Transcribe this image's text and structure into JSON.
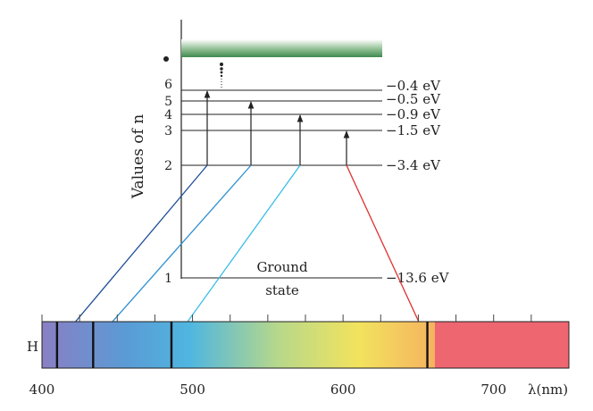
{
  "levels": [
    {
      "n": "1",
      "energy": -13.6,
      "label": "−13.6 eV"
    },
    {
      "n": "2",
      "energy": -3.4,
      "label": "−3.4 eV"
    },
    {
      "n": "3",
      "energy": -1.5,
      "label": "−1.5 eV"
    },
    {
      "n": "4",
      "energy": -0.9,
      "label": "−0.9 eV"
    },
    {
      "n": "5",
      "energy": -0.5,
      "label": "−0.5 eV"
    },
    {
      "n": "6",
      "energy": -0.4,
      "label": "−0.4 eV"
    }
  ],
  "n_infinity_marker": "•",
  "y_axis_title": "Values of n",
  "ground_state": {
    "line1": "Ground",
    "line2": "state"
  },
  "transitions": [
    {
      "from": "6",
      "to": "2",
      "wavelength_nm": 410,
      "color": "#1f4e96"
    },
    {
      "from": "5",
      "to": "2",
      "wavelength_nm": 434,
      "color": "#2f8fd0"
    },
    {
      "from": "4",
      "to": "2",
      "wavelength_nm": 486,
      "color": "#38bde8"
    },
    {
      "from": "3",
      "to": "2",
      "wavelength_nm": 656,
      "color": "#e03030"
    }
  ],
  "spectrum": {
    "row_label": "H",
    "min_nm": 400,
    "max_nm": 750,
    "tick_labels": [
      "400",
      "500",
      "600",
      "700"
    ],
    "unit_label": "λ(nm)"
  },
  "colors": {
    "continuum": "#3f8a4f",
    "line": "#222222",
    "red_band": "#ee6670"
  }
}
